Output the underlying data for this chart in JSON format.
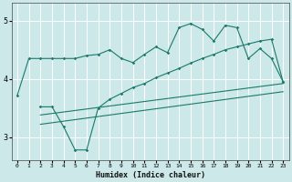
{
  "xlabel": "Humidex (Indice chaleur)",
  "bg_color": "#cce8e8",
  "grid_color": "#ffffff",
  "line_color": "#1a7a6a",
  "xlim": [
    -0.5,
    23.5
  ],
  "ylim": [
    2.6,
    5.3
  ],
  "yticks": [
    3,
    4,
    5
  ],
  "xticks": [
    0,
    1,
    2,
    3,
    4,
    5,
    6,
    7,
    8,
    9,
    10,
    11,
    12,
    13,
    14,
    15,
    16,
    17,
    18,
    19,
    20,
    21,
    22,
    23
  ],
  "line1_x": [
    0,
    1,
    2,
    3,
    4,
    5,
    6,
    7,
    8,
    9,
    10,
    11,
    12,
    13,
    14,
    15,
    16,
    17,
    18,
    19,
    20,
    21,
    22,
    23
  ],
  "line1_y": [
    3.72,
    4.35,
    4.35,
    4.35,
    4.35,
    4.35,
    4.4,
    4.42,
    4.5,
    4.35,
    4.28,
    4.42,
    4.55,
    4.45,
    4.88,
    4.95,
    4.85,
    4.65,
    4.92,
    4.88,
    4.35,
    4.52,
    4.35,
    3.95
  ],
  "line2_x": [
    2,
    3,
    4,
    5,
    6,
    7,
    8,
    9,
    10,
    11,
    12,
    13,
    14,
    15,
    16,
    17,
    18,
    19,
    20,
    21,
    22,
    23
  ],
  "line2_y": [
    3.52,
    3.52,
    3.18,
    2.78,
    2.78,
    3.5,
    3.65,
    3.75,
    3.85,
    3.92,
    4.02,
    4.1,
    4.18,
    4.27,
    4.35,
    4.42,
    4.5,
    4.55,
    4.6,
    4.65,
    4.68,
    3.95
  ],
  "line3_x": [
    2,
    23
  ],
  "line3_y": [
    3.38,
    3.92
  ],
  "line4_x": [
    2,
    23
  ],
  "line4_y": [
    3.22,
    3.78
  ]
}
